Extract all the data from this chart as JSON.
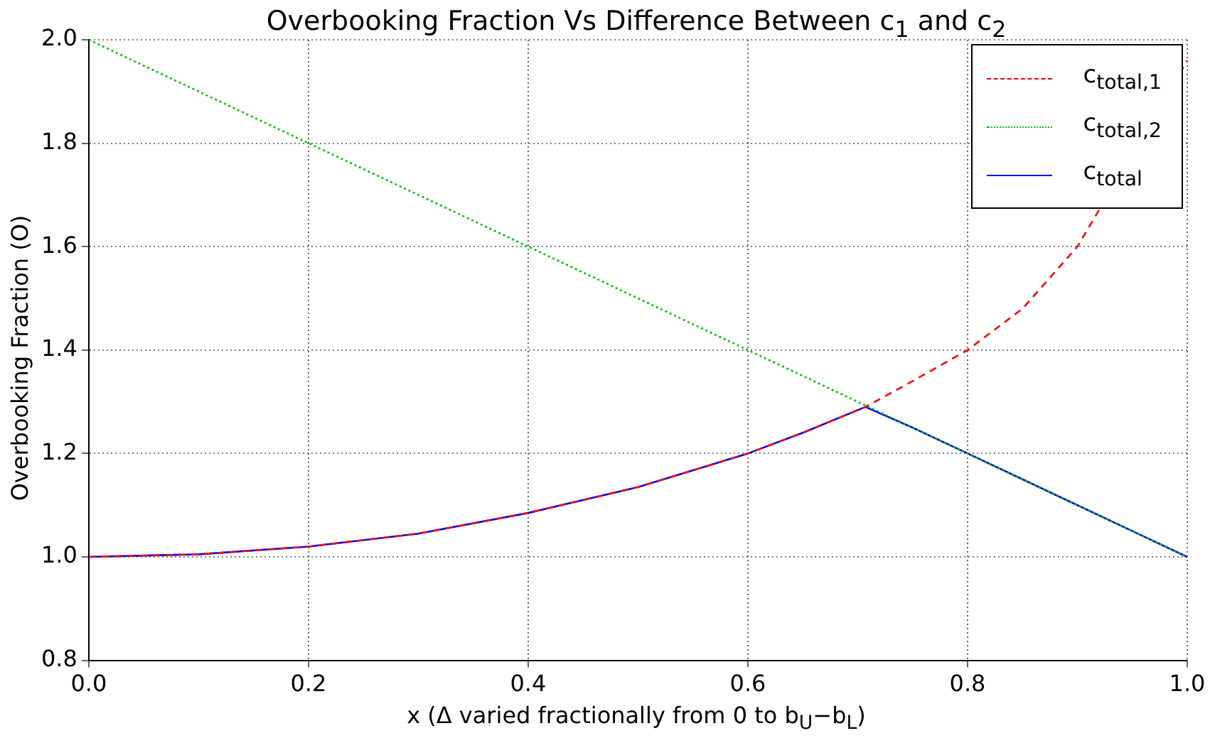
{
  "chart_data": {
    "type": "line",
    "title": "Overbooking Fraction Vs Difference Between c$_{1}$ and c$_{2}$",
    "xlabel": "x (Δ varied fractionally from 0 to b$_{U}$−b$_{L}$)",
    "ylabel": "Overbooking Fraction (O)",
    "x": [
      0,
      0.1,
      0.2,
      0.3,
      0.4,
      0.5,
      0.6,
      0.65,
      0.707,
      0.75,
      0.8,
      0.85,
      0.9,
      0.95,
      1.0
    ],
    "series": [
      {
        "name": "c$_{total,1}$",
        "color": "#ff0000",
        "line_style": "dashed",
        "values": [
          1.0,
          1.005,
          1.02,
          1.045,
          1.085,
          1.135,
          1.2,
          1.24,
          1.29,
          1.34,
          1.4,
          1.48,
          1.6,
          null,
          1.96
        ]
      },
      {
        "name": "c$_{total,2}$",
        "color": "#00bf00",
        "line_style": "dotted",
        "values": [
          2.0,
          1.9,
          1.8,
          1.7,
          1.6,
          1.5,
          1.4,
          1.35,
          1.293,
          1.25,
          1.2,
          1.15,
          1.1,
          1.05,
          1.0
        ]
      },
      {
        "name": "c$_{total}$",
        "color": "#0000ff",
        "line_style": "solid",
        "values": [
          1.0,
          1.005,
          1.02,
          1.045,
          1.085,
          1.135,
          1.2,
          1.24,
          1.29,
          1.25,
          1.2,
          1.15,
          1.1,
          1.05,
          1.0
        ]
      }
    ],
    "xlim": [
      0,
      1
    ],
    "xticks": [
      {
        "value": 0,
        "label": "0.0"
      },
      {
        "value": 0.2,
        "label": "0.2"
      },
      {
        "value": 0.4,
        "label": "0.4"
      },
      {
        "value": 0.6,
        "label": "0.6"
      },
      {
        "value": 0.8,
        "label": "0.8"
      },
      {
        "value": 1,
        "label": "1.0"
      }
    ],
    "ylim": [
      0.8,
      2.0
    ],
    "yticks": [
      {
        "value": 0.8,
        "label": "0.8"
      },
      {
        "value": 1.0,
        "label": "1.0"
      },
      {
        "value": 1.2,
        "label": "1.2"
      },
      {
        "value": 1.4,
        "label": "1.4"
      },
      {
        "value": 1.6,
        "label": "1.6"
      },
      {
        "value": 1.8,
        "label": "1.8"
      },
      {
        "value": 2.0,
        "label": "2.0"
      }
    ],
    "grid": true,
    "legend": "top right",
    "marker": "none"
  }
}
